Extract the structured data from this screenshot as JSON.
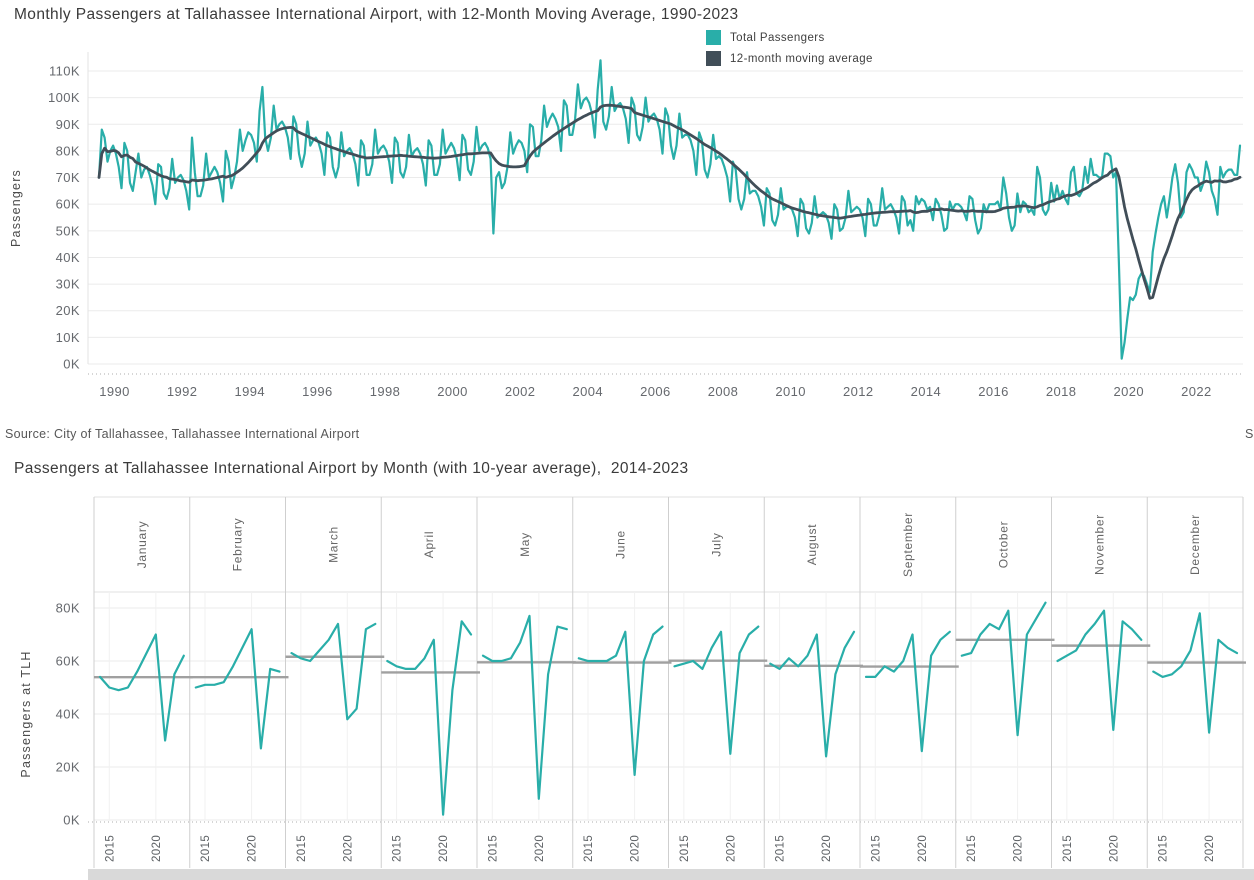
{
  "source_note": "Source: City of Tallahassee, Tallahassee International Airport",
  "clipped_text_right_edge": "S",
  "colors": {
    "total_passengers": "#29AEA9",
    "moving_average": "#414E58",
    "ten_year_average_line": "#A0A0A0"
  },
  "chart_data": [
    {
      "type": "line",
      "title": "Monthly Passengers at Tallahassee International Airport, with 12-Month Moving Average, 1990-2023",
      "ylabel": "Passengers",
      "start_year": 1990,
      "x_tick_labels": [
        "1990",
        "1992",
        "1994",
        "1996",
        "1998",
        "2000",
        "2002",
        "2004",
        "2006",
        "2008",
        "2010",
        "2012",
        "2014",
        "2016",
        "2018",
        "2020",
        "2022"
      ],
      "y_tick_labels": [
        "0K",
        "10K",
        "20K",
        "30K",
        "40K",
        "50K",
        "60K",
        "70K",
        "80K",
        "90K",
        "100K",
        "110K"
      ],
      "y_unit": "thousands of passengers",
      "legend_position": "top-right",
      "series": [
        {
          "name": "Total Passengers",
          "color": "#29AEA9",
          "monthly_values_thousands": [
            70,
            88,
            85,
            76,
            80,
            82,
            79,
            74,
            66,
            83,
            80,
            68,
            65,
            72,
            79,
            70,
            73,
            74,
            71,
            67,
            60,
            75,
            74,
            64,
            62,
            66,
            77,
            68,
            70,
            71,
            69,
            65,
            58,
            85,
            72,
            63,
            63,
            67,
            79,
            70,
            72,
            74,
            72,
            68,
            61,
            80,
            76,
            66,
            70,
            76,
            88,
            80,
            84,
            87,
            86,
            83,
            76,
            95,
            104,
            85,
            80,
            85,
            97,
            88,
            90,
            91,
            89,
            85,
            77,
            93,
            90,
            79,
            74,
            79,
            91,
            82,
            84,
            85,
            83,
            79,
            71,
            87,
            85,
            74,
            70,
            74,
            87,
            78,
            80,
            81,
            79,
            75,
            67,
            84,
            82,
            71,
            71,
            75,
            88,
            79,
            81,
            82,
            80,
            76,
            68,
            85,
            83,
            72,
            70,
            74,
            86,
            78,
            80,
            81,
            79,
            75,
            67,
            84,
            82,
            71,
            71,
            75,
            88,
            79,
            81,
            83,
            81,
            77,
            69,
            86,
            84,
            73,
            71,
            76,
            89,
            80,
            82,
            83,
            81,
            77,
            49,
            70,
            72,
            66,
            68,
            74,
            87,
            79,
            82,
            84,
            83,
            80,
            72,
            90,
            89,
            78,
            78,
            84,
            97,
            89,
            92,
            94,
            92,
            89,
            80,
            99,
            97,
            86,
            86,
            92,
            105,
            96,
            99,
            100,
            98,
            94,
            85,
            103,
            114,
            91,
            88,
            93,
            104,
            95,
            97,
            98,
            96,
            92,
            83,
            100,
            97,
            86,
            84,
            89,
            100,
            91,
            93,
            94,
            92,
            88,
            79,
            96,
            93,
            82,
            77,
            82,
            94,
            85,
            86,
            86,
            84,
            80,
            71,
            87,
            84,
            73,
            70,
            75,
            86,
            77,
            78,
            77,
            74,
            70,
            61,
            76,
            73,
            62,
            58,
            62,
            72,
            64,
            65,
            65,
            63,
            59,
            52,
            66,
            64,
            54,
            52,
            56,
            66,
            58,
            59,
            59,
            58,
            55,
            48,
            62,
            60,
            51,
            49,
            53,
            63,
            55,
            56,
            57,
            56,
            53,
            47,
            60,
            58,
            50,
            51,
            55,
            65,
            57,
            58,
            59,
            58,
            55,
            48,
            62,
            60,
            52,
            52,
            56,
            66,
            58,
            59,
            60,
            58,
            55,
            49,
            63,
            61,
            52,
            54,
            50,
            63,
            60,
            62,
            61,
            58,
            59,
            54,
            62,
            60,
            56,
            50,
            51,
            61,
            58,
            60,
            60,
            59,
            57,
            54,
            63,
            62,
            54,
            49,
            51,
            60,
            57,
            60,
            60,
            60,
            61,
            58,
            70,
            64,
            55,
            50,
            52,
            64,
            57,
            61,
            60,
            57,
            58,
            56,
            74,
            70,
            58,
            56,
            58,
            68,
            61,
            67,
            62,
            65,
            62,
            60,
            72,
            74,
            64,
            63,
            65,
            74,
            68,
            77,
            71,
            71,
            70,
            70,
            79,
            79,
            78,
            70,
            72,
            38,
            2,
            8,
            17,
            25,
            24,
            26,
            32,
            34,
            33,
            30,
            27,
            42,
            49,
            55,
            60,
            63,
            55,
            62,
            70,
            75,
            68,
            55,
            57,
            72,
            75,
            73,
            70,
            70,
            65,
            68,
            76,
            72,
            65,
            62,
            56,
            74,
            70,
            72,
            73,
            73,
            71,
            71,
            82
          ]
        },
        {
          "name": "12-month moving average",
          "color": "#414E58",
          "computed": "trailing 12-month mean of Total Passengers"
        }
      ]
    },
    {
      "type": "line-small-multiples",
      "title": "Passengers at Tallahassee International Airport by Month (with 10-year average),  2014-2023",
      "ylabel": "Passengers at TLH",
      "years": [
        2014,
        2015,
        2016,
        2017,
        2018,
        2019,
        2020,
        2021,
        2022,
        2023
      ],
      "x_tick_labels": [
        "2015",
        "2020"
      ],
      "y_tick_labels": [
        "0K",
        "20K",
        "40K",
        "60K",
        "80K"
      ],
      "line_color": "#29AEA9",
      "average_line_color": "#A0A0A0",
      "months": [
        {
          "name": "January",
          "values": [
            54,
            50,
            49,
            50,
            56,
            63,
            70,
            30,
            55,
            62
          ],
          "ten_year_average": 53.9
        },
        {
          "name": "February",
          "values": [
            50,
            51,
            51,
            52,
            58,
            65,
            72,
            27,
            57,
            56
          ],
          "ten_year_average": 53.9
        },
        {
          "name": "March",
          "values": [
            63,
            61,
            60,
            64,
            68,
            74,
            38,
            42,
            72,
            74
          ],
          "ten_year_average": 61.6
        },
        {
          "name": "April",
          "values": [
            60,
            58,
            57,
            57,
            61,
            68,
            2,
            49,
            75,
            70
          ],
          "ten_year_average": 55.7
        },
        {
          "name": "May",
          "values": [
            62,
            60,
            60,
            61,
            67,
            77,
            8,
            55,
            73,
            72
          ],
          "ten_year_average": 59.5
        },
        {
          "name": "June",
          "values": [
            61,
            60,
            60,
            60,
            62,
            71,
            17,
            60,
            70,
            73
          ],
          "ten_year_average": 59.4
        },
        {
          "name": "July",
          "values": [
            58,
            59,
            60,
            57,
            65,
            71,
            25,
            63,
            70,
            73
          ],
          "ten_year_average": 60.1
        },
        {
          "name": "August",
          "values": [
            59,
            57,
            61,
            58,
            62,
            70,
            24,
            55,
            65,
            71
          ],
          "ten_year_average": 58.2
        },
        {
          "name": "September",
          "values": [
            54,
            54,
            58,
            56,
            60,
            70,
            26,
            62,
            68,
            71
          ],
          "ten_year_average": 57.9
        },
        {
          "name": "October",
          "values": [
            62,
            63,
            70,
            74,
            72,
            79,
            32,
            70,
            76,
            82
          ],
          "ten_year_average": 68.0
        },
        {
          "name": "November",
          "values": [
            60,
            62,
            64,
            70,
            74,
            79,
            34,
            75,
            72,
            68
          ],
          "ten_year_average": 65.8
        },
        {
          "name": "December",
          "values": [
            56,
            54,
            55,
            58,
            64,
            78,
            33,
            68,
            65,
            63
          ],
          "ten_year_average": 59.4
        }
      ]
    }
  ]
}
